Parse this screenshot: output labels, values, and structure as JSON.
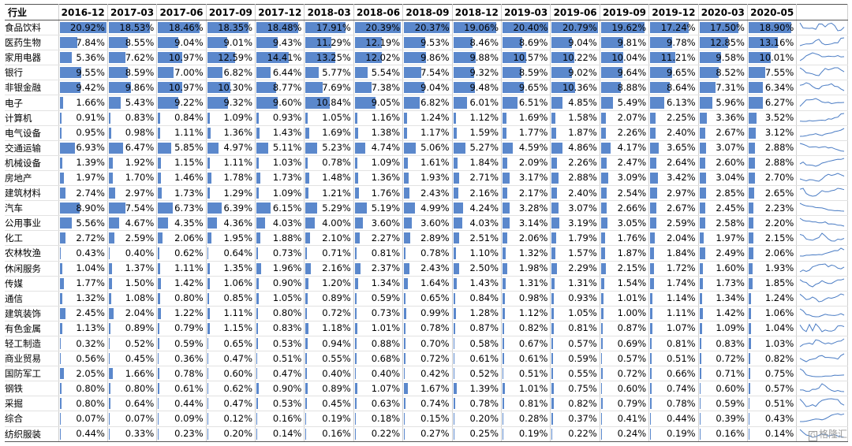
{
  "table": {
    "industry_header": "行业",
    "periods": [
      "2016-12",
      "2017-03",
      "2017-06",
      "2017-09",
      "2017-12",
      "2018-03",
      "2018-06",
      "2018-09",
      "2018-12",
      "2019-03",
      "2019-06",
      "2019-09",
      "2019-12",
      "2020-03",
      "2020-05"
    ],
    "bar_color": "#5b88cc",
    "sparkline_color": "#4a7cc4",
    "rows": [
      {
        "industry": "食品饮料",
        "values": [
          "20.92%",
          "18.53%",
          "18.46%",
          "18.35%",
          "18.48%",
          "17.91%",
          "20.39%",
          "20.37%",
          "19.06%",
          "20.40%",
          "20.79%",
          "19.62%",
          "17.24%",
          "17.50%",
          "18.90%"
        ]
      },
      {
        "industry": "医药生物",
        "values": [
          "7.84%",
          "8.55%",
          "9.04%",
          "9.01%",
          "9.43%",
          "11.29%",
          "12.19%",
          "9.53%",
          "8.46%",
          "8.69%",
          "9.04%",
          "9.81%",
          "9.78%",
          "12.85%",
          "13.16%"
        ]
      },
      {
        "industry": "家用电器",
        "values": [
          "5.36%",
          "7.62%",
          "10.97%",
          "12.59%",
          "14.41%",
          "13.25%",
          "12.02%",
          "9.86%",
          "9.88%",
          "10.57%",
          "10.22%",
          "10.04%",
          "11.21%",
          "9.58%",
          "10.01%"
        ]
      },
      {
        "industry": "银行",
        "values": [
          "9.55%",
          "8.59%",
          "7.00%",
          "6.82%",
          "6.44%",
          "5.77%",
          "5.54%",
          "7.54%",
          "9.32%",
          "8.59%",
          "9.02%",
          "9.64%",
          "9.65%",
          "8.52%",
          "7.55%"
        ]
      },
      {
        "industry": "非银金融",
        "values": [
          "9.42%",
          "9.86%",
          "10.97%",
          "10.30%",
          "8.77%",
          "7.69%",
          "7.38%",
          "9.04%",
          "9.48%",
          "9.65%",
          "10.36%",
          "8.88%",
          "8.64%",
          "7.31%",
          "6.34%"
        ]
      },
      {
        "industry": "电子",
        "values": [
          "1.66%",
          "5.43%",
          "9.22%",
          "9.32%",
          "9.60%",
          "10.84%",
          "9.05%",
          "6.82%",
          "6.01%",
          "6.51%",
          "4.85%",
          "5.49%",
          "6.13%",
          "5.96%",
          "6.27%"
        ]
      },
      {
        "industry": "计算机",
        "values": [
          "0.91%",
          "0.83%",
          "0.84%",
          "1.09%",
          "0.93%",
          "1.05%",
          "1.16%",
          "1.24%",
          "1.12%",
          "1.69%",
          "1.58%",
          "2.07%",
          "2.25%",
          "3.36%",
          "3.52%"
        ]
      },
      {
        "industry": "电气设备",
        "values": [
          "0.95%",
          "0.98%",
          "1.11%",
          "1.36%",
          "1.43%",
          "1.69%",
          "1.38%",
          "1.17%",
          "1.59%",
          "1.77%",
          "1.87%",
          "2.26%",
          "2.40%",
          "2.67%",
          "3.12%"
        ]
      },
      {
        "industry": "交通运输",
        "values": [
          "6.93%",
          "6.47%",
          "5.85%",
          "4.97%",
          "5.11%",
          "5.23%",
          "4.74%",
          "5.06%",
          "5.27%",
          "4.59%",
          "4.86%",
          "4.17%",
          "3.65%",
          "3.07%",
          "2.88%"
        ]
      },
      {
        "industry": "机械设备",
        "values": [
          "1.39%",
          "1.92%",
          "1.15%",
          "1.11%",
          "1.03%",
          "0.78%",
          "1.09%",
          "1.61%",
          "1.84%",
          "2.09%",
          "2.26%",
          "2.47%",
          "2.64%",
          "2.60%",
          "2.88%"
        ]
      },
      {
        "industry": "房地产",
        "values": [
          "1.97%",
          "1.70%",
          "1.46%",
          "1.78%",
          "1.73%",
          "1.48%",
          "1.36%",
          "1.93%",
          "2.71%",
          "3.17%",
          "2.88%",
          "3.09%",
          "3.42%",
          "3.04%",
          "2.70%"
        ]
      },
      {
        "industry": "建筑材料",
        "values": [
          "2.74%",
          "2.97%",
          "1.73%",
          "1.29%",
          "1.09%",
          "1.21%",
          "1.76%",
          "2.43%",
          "2.16%",
          "2.17%",
          "2.40%",
          "2.54%",
          "2.97%",
          "2.85%",
          "2.65%"
        ]
      },
      {
        "industry": "汽车",
        "values": [
          "8.90%",
          "7.54%",
          "6.73%",
          "6.39%",
          "6.15%",
          "5.29%",
          "5.19%",
          "4.99%",
          "4.24%",
          "3.28%",
          "3.07%",
          "2.66%",
          "2.67%",
          "2.45%",
          "2.23%"
        ]
      },
      {
        "industry": "公用事业",
        "values": [
          "5.56%",
          "4.67%",
          "4.35%",
          "4.36%",
          "4.03%",
          "4.00%",
          "3.60%",
          "3.60%",
          "4.03%",
          "3.14%",
          "3.19%",
          "3.05%",
          "2.59%",
          "2.58%",
          "2.20%"
        ]
      },
      {
        "industry": "化工",
        "values": [
          "2.72%",
          "2.59%",
          "2.06%",
          "1.95%",
          "1.88%",
          "2.10%",
          "2.27%",
          "2.89%",
          "2.51%",
          "2.06%",
          "1.79%",
          "1.76%",
          "2.04%",
          "1.97%",
          "2.15%"
        ]
      },
      {
        "industry": "农林牧渔",
        "values": [
          "0.43%",
          "0.40%",
          "0.62%",
          "0.64%",
          "0.73%",
          "0.71%",
          "0.81%",
          "0.78%",
          "1.10%",
          "1.32%",
          "1.57%",
          "1.87%",
          "1.84%",
          "2.49%",
          "2.06%"
        ]
      },
      {
        "industry": "休闲服务",
        "values": [
          "1.04%",
          "1.37%",
          "1.11%",
          "1.35%",
          "1.96%",
          "2.16%",
          "2.37%",
          "2.43%",
          "2.50%",
          "1.98%",
          "2.29%",
          "2.15%",
          "1.72%",
          "1.60%",
          "1.93%"
        ]
      },
      {
        "industry": "传媒",
        "values": [
          "1.77%",
          "1.50%",
          "1.42%",
          "1.06%",
          "0.90%",
          "1.20%",
          "1.34%",
          "1.64%",
          "1.43%",
          "1.31%",
          "1.31%",
          "1.54%",
          "1.74%",
          "1.73%",
          "1.85%"
        ]
      },
      {
        "industry": "通信",
        "values": [
          "1.32%",
          "1.08%",
          "0.80%",
          "0.85%",
          "1.05%",
          "0.89%",
          "0.59%",
          "0.65%",
          "0.84%",
          "0.98%",
          "0.93%",
          "1.01%",
          "1.14%",
          "1.34%",
          "1.24%"
        ]
      },
      {
        "industry": "建筑装饰",
        "values": [
          "2.45%",
          "2.04%",
          "1.22%",
          "1.11%",
          "0.80%",
          "0.72%",
          "0.73%",
          "0.99%",
          "1.28%",
          "1.12%",
          "1.05%",
          "1.00%",
          "1.11%",
          "1.42%",
          "1.06%"
        ]
      },
      {
        "industry": "有色金属",
        "values": [
          "1.13%",
          "0.89%",
          "0.79%",
          "1.15%",
          "0.83%",
          "1.18%",
          "1.01%",
          "0.78%",
          "0.87%",
          "0.82%",
          "0.81%",
          "0.87%",
          "1.07%",
          "1.09%",
          "1.04%"
        ]
      },
      {
        "industry": "轻工制造",
        "values": [
          "0.32%",
          "0.52%",
          "0.59%",
          "0.65%",
          "0.53%",
          "0.94%",
          "0.88%",
          "0.70%",
          "0.58%",
          "0.67%",
          "0.57%",
          "0.69%",
          "0.81%",
          "0.83%",
          "1.03%"
        ]
      },
      {
        "industry": "商业贸易",
        "values": [
          "0.56%",
          "0.45%",
          "0.36%",
          "0.47%",
          "0.51%",
          "0.55%",
          "0.68%",
          "0.72%",
          "0.61%",
          "0.61%",
          "0.59%",
          "0.57%",
          "0.51%",
          "0.72%",
          "0.82%"
        ]
      },
      {
        "industry": "国防军工",
        "values": [
          "2.05%",
          "1.66%",
          "0.78%",
          "0.60%",
          "0.47%",
          "0.40%",
          "0.40%",
          "0.42%",
          "0.52%",
          "0.51%",
          "0.55%",
          "0.72%",
          "0.66%",
          "0.71%",
          "0.75%"
        ]
      },
      {
        "industry": "钢铁",
        "values": [
          "0.80%",
          "0.80%",
          "0.61%",
          "0.62%",
          "0.90%",
          "0.89%",
          "1.07%",
          "1.67%",
          "1.39%",
          "1.01%",
          "0.75%",
          "0.60%",
          "0.74%",
          "0.60%",
          "0.57%"
        ]
      },
      {
        "industry": "采掘",
        "values": [
          "0.80%",
          "0.64%",
          "0.44%",
          "0.47%",
          "0.53%",
          "0.45%",
          "0.63%",
          "0.74%",
          "0.78%",
          "0.81%",
          "0.82%",
          "0.79%",
          "0.78%",
          "0.59%",
          "0.51%"
        ]
      },
      {
        "industry": "综合",
        "values": [
          "0.07%",
          "0.07%",
          "0.09%",
          "0.12%",
          "0.16%",
          "0.19%",
          "0.18%",
          "0.15%",
          "0.20%",
          "0.28%",
          "0.37%",
          "0.41%",
          "0.44%",
          "0.39%",
          "0.43%"
        ]
      },
      {
        "industry": "纺织服装",
        "values": [
          "0.44%",
          "0.33%",
          "0.23%",
          "0.20%",
          "0.14%",
          "0.16%",
          "0.22%",
          "0.27%",
          "0.25%",
          "0.19%",
          "0.22%",
          "0.24%",
          "0.19%",
          "0.16%",
          "0.14%"
        ]
      }
    ]
  },
  "watermark": {
    "icon": "gelonghui-logo-icon",
    "text": "格隆汇",
    "icon_glyph": "G"
  }
}
